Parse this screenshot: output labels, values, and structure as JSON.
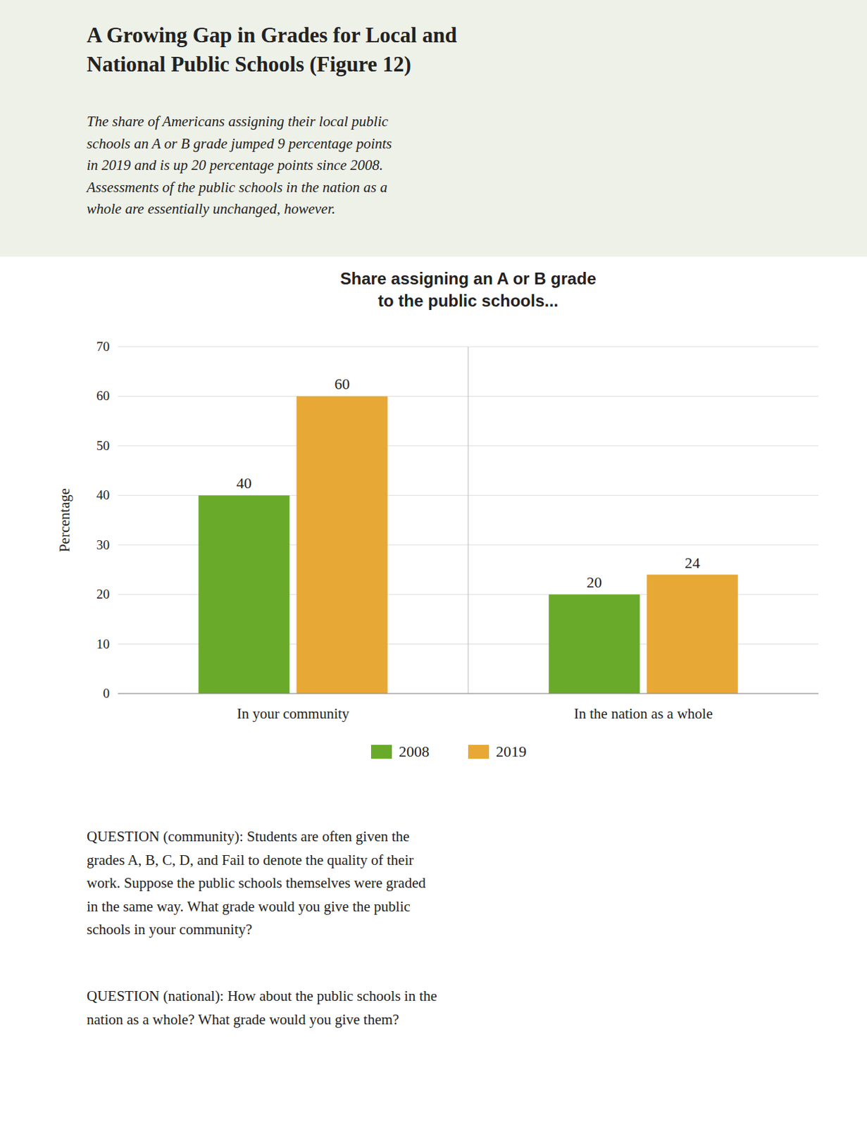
{
  "chart_data": {
    "type": "bar",
    "title": "A Growing Gap in Grades for Local and\nNational Public Schools (Figure 12)",
    "subtitle": "The share of Americans assigning their local public\nschools an A or B grade jumped 9 percentage points\nin 2019 and is up 20 percentage points since 2008.\nAssessments of the public schools in the nation as a\nwhole are essentially unchanged, however.",
    "annotations": [
      "Share assigning an A or B grade\nto the public schools...",
      "QUESTION (community): Students are often given the\ngrades A, B, C, D, and Fail to denote the quality of their\nwork. Suppose the public schools themselves were graded\nin the same way. What grade would you give the public\nschools in your community?",
      "QUESTION (national): How about the public schools in the\nnation as a whole?  What grade would you give them?"
    ],
    "y_label": "Percentage",
    "categories": [
      "In your community",
      "In the nation as a whole"
    ],
    "series": [
      {
        "name": "2008",
        "color": "#6aaa2a",
        "values": [
          40,
          20
        ]
      },
      {
        "name": "2019",
        "color": "#e8a835",
        "values": [
          60,
          24
        ]
      }
    ],
    "ylim": [
      0,
      70
    ],
    "yticks": [
      0,
      10,
      20,
      30,
      40,
      50,
      60,
      70
    ],
    "grid": true,
    "legend": "bottom",
    "data_labels": true
  }
}
